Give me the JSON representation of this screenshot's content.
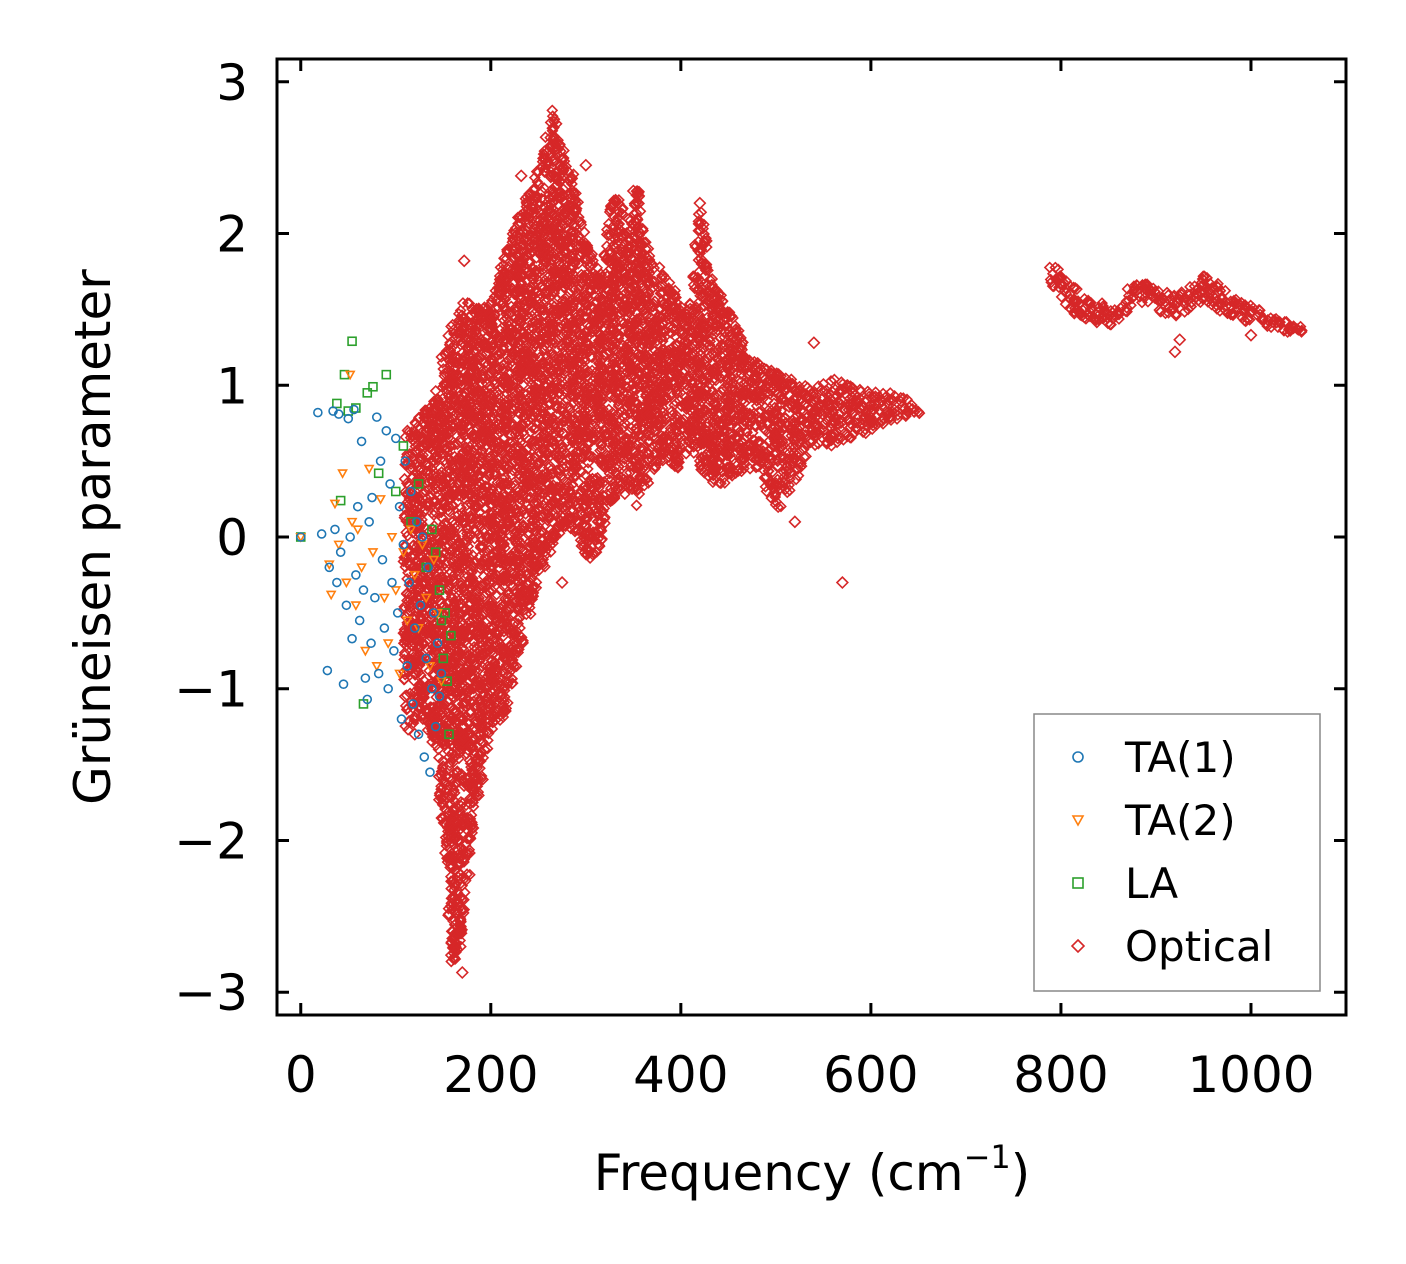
{
  "chart_data": {
    "type": "scatter",
    "title": "",
    "xlabel": "Frequency (cm",
    "xlabel_sup": "−1",
    "xlabel_end": ")",
    "ylabel": "Grüneisen parameter",
    "xlim": [
      -25,
      1100
    ],
    "ylim": [
      -3.15,
      3.15
    ],
    "xticks": [
      0,
      200,
      400,
      600,
      800,
      1000
    ],
    "xtick_labels": [
      "0",
      "200",
      "400",
      "600",
      "800",
      "1000"
    ],
    "yticks": [
      -3,
      -2,
      -1,
      0,
      1,
      2,
      3
    ],
    "ytick_labels": [
      "−3",
      "−2",
      "−1",
      "0",
      "1",
      "2",
      "3"
    ],
    "legend_position": "lower-right",
    "grid": false,
    "series": [
      {
        "name": "TA(1)",
        "marker": "circle",
        "color": "#1f77b4",
        "points": [
          [
            0,
            0.0
          ],
          [
            18,
            0.82
          ],
          [
            22,
            0.02
          ],
          [
            28,
            -0.88
          ],
          [
            30,
            -0.2
          ],
          [
            34,
            0.83
          ],
          [
            36,
            0.05
          ],
          [
            38,
            -0.3
          ],
          [
            40,
            0.81
          ],
          [
            42,
            -0.1
          ],
          [
            45,
            -0.97
          ],
          [
            48,
            -0.45
          ],
          [
            50,
            0.78
          ],
          [
            52,
            0.0
          ],
          [
            54,
            -0.67
          ],
          [
            56,
            0.84
          ],
          [
            58,
            -0.25
          ],
          [
            60,
            0.2
          ],
          [
            62,
            -0.55
          ],
          [
            64,
            0.63
          ],
          [
            66,
            -0.35
          ],
          [
            68,
            -0.93
          ],
          [
            70,
            -1.07
          ],
          [
            72,
            0.1
          ],
          [
            74,
            -0.7
          ],
          [
            75,
            0.26
          ],
          [
            78,
            -0.4
          ],
          [
            80,
            0.79
          ],
          [
            82,
            -0.9
          ],
          [
            84,
            0.5
          ],
          [
            86,
            -0.15
          ],
          [
            88,
            -0.6
          ],
          [
            90,
            0.7
          ],
          [
            92,
            -1.0
          ],
          [
            94,
            0.35
          ],
          [
            96,
            -0.3
          ],
          [
            98,
            -0.75
          ],
          [
            100,
            0.65
          ],
          [
            102,
            -0.5
          ],
          [
            104,
            0.2
          ],
          [
            106,
            -1.2
          ],
          [
            108,
            -0.05
          ],
          [
            110,
            0.5
          ],
          [
            112,
            -0.85
          ],
          [
            114,
            -0.3
          ],
          [
            116,
            0.3
          ],
          [
            118,
            -1.1
          ],
          [
            120,
            -0.6
          ],
          [
            122,
            0.1
          ],
          [
            124,
            -1.3
          ],
          [
            126,
            -0.45
          ],
          [
            128,
            0.0
          ],
          [
            130,
            -1.45
          ],
          [
            132,
            -0.8
          ],
          [
            134,
            -0.2
          ],
          [
            136,
            -1.55
          ],
          [
            138,
            -1.0
          ],
          [
            140,
            -0.5
          ],
          [
            142,
            -1.25
          ],
          [
            144,
            -0.7
          ],
          [
            146,
            -1.05
          ],
          [
            148,
            -0.9
          ]
        ]
      },
      {
        "name": "TA(2)",
        "marker": "triangle-down",
        "color": "#ff7f0e",
        "points": [
          [
            0,
            0.0
          ],
          [
            30,
            -0.18
          ],
          [
            32,
            -0.38
          ],
          [
            36,
            0.22
          ],
          [
            40,
            -0.05
          ],
          [
            44,
            0.42
          ],
          [
            48,
            -0.3
          ],
          [
            52,
            1.07
          ],
          [
            54,
            0.1
          ],
          [
            58,
            -0.45
          ],
          [
            60,
            0.05
          ],
          [
            64,
            -0.2
          ],
          [
            68,
            -0.75
          ],
          [
            72,
            0.45
          ],
          [
            76,
            -0.1
          ],
          [
            80,
            -0.85
          ],
          [
            84,
            0.25
          ],
          [
            88,
            -0.4
          ],
          [
            92,
            -0.7
          ],
          [
            96,
            0.0
          ],
          [
            100,
            -0.35
          ],
          [
            104,
            -0.9
          ],
          [
            108,
            -0.1
          ],
          [
            112,
            -0.55
          ],
          [
            116,
            0.05
          ],
          [
            120,
            -0.25
          ],
          [
            124,
            -0.6
          ],
          [
            128,
            -0.05
          ],
          [
            132,
            -0.4
          ],
          [
            136,
            -0.85
          ],
          [
            140,
            -0.15
          ],
          [
            144,
            -0.5
          ],
          [
            148,
            -0.95
          ]
        ]
      },
      {
        "name": "LA",
        "marker": "square",
        "color": "#2ca02c",
        "points": [
          [
            0,
            0.0
          ],
          [
            38,
            0.88
          ],
          [
            42,
            0.24
          ],
          [
            46,
            1.07
          ],
          [
            50,
            0.83
          ],
          [
            54,
            1.29
          ],
          [
            58,
            0.85
          ],
          [
            66,
            -1.1
          ],
          [
            70,
            0.95
          ],
          [
            76,
            0.99
          ],
          [
            82,
            0.42
          ],
          [
            90,
            1.07
          ],
          [
            100,
            0.3
          ],
          [
            108,
            0.6
          ],
          [
            116,
            0.1
          ],
          [
            124,
            0.35
          ],
          [
            132,
            -0.2
          ],
          [
            138,
            0.05
          ],
          [
            142,
            -0.1
          ],
          [
            146,
            -0.35
          ],
          [
            148,
            -0.55
          ],
          [
            150,
            -0.8
          ],
          [
            152,
            -0.5
          ],
          [
            154,
            -0.95
          ],
          [
            156,
            -1.3
          ],
          [
            158,
            -0.65
          ]
        ]
      },
      {
        "name": "Optical",
        "marker": "diamond",
        "color": "#d62728",
        "envelope": [
          [
            110,
            0.7,
            -1.3
          ],
          [
            125,
            0.8,
            -1.2
          ],
          [
            140,
            0.9,
            -1.4
          ],
          [
            150,
            1.2,
            -1.9
          ],
          [
            160,
            1.4,
            -2.85
          ],
          [
            170,
            1.55,
            -2.7
          ],
          [
            180,
            1.55,
            -2.0
          ],
          [
            190,
            1.5,
            -1.6
          ],
          [
            200,
            1.55,
            -1.3
          ],
          [
            215,
            1.85,
            -1.2
          ],
          [
            230,
            2.15,
            -0.8
          ],
          [
            245,
            2.35,
            -0.45
          ],
          [
            255,
            2.55,
            -0.2
          ],
          [
            265,
            2.82,
            -0.05
          ],
          [
            275,
            2.55,
            0.05
          ],
          [
            285,
            2.4,
            0.05
          ],
          [
            300,
            1.95,
            -0.15
          ],
          [
            315,
            1.75,
            -0.1
          ],
          [
            330,
            2.3,
            0.25
          ],
          [
            345,
            2.1,
            0.3
          ],
          [
            355,
            2.3,
            0.2
          ],
          [
            365,
            1.9,
            0.35
          ],
          [
            380,
            1.75,
            0.5
          ],
          [
            395,
            1.6,
            0.45
          ],
          [
            410,
            1.55,
            0.6
          ],
          [
            420,
            2.15,
            0.45
          ],
          [
            435,
            1.7,
            0.35
          ],
          [
            450,
            1.5,
            0.35
          ],
          [
            465,
            1.3,
            0.45
          ],
          [
            480,
            1.15,
            0.45
          ],
          [
            500,
            1.1,
            0.15
          ],
          [
            520,
            1.05,
            0.35
          ],
          [
            540,
            1.0,
            0.6
          ],
          [
            560,
            1.05,
            0.6
          ],
          [
            580,
            1.0,
            0.65
          ],
          [
            600,
            0.98,
            0.7
          ],
          [
            620,
            0.95,
            0.75
          ],
          [
            640,
            0.9,
            0.8
          ],
          [
            652,
            0.82,
            0.82
          ],
          [
            790,
            1.8,
            1.65
          ],
          [
            800,
            1.75,
            1.55
          ],
          [
            815,
            1.65,
            1.45
          ],
          [
            830,
            1.55,
            1.42
          ],
          [
            845,
            1.55,
            1.38
          ],
          [
            860,
            1.5,
            1.42
          ],
          [
            875,
            1.68,
            1.52
          ],
          [
            890,
            1.68,
            1.55
          ],
          [
            905,
            1.62,
            1.48
          ],
          [
            920,
            1.6,
            1.45
          ],
          [
            935,
            1.65,
            1.5
          ],
          [
            950,
            1.72,
            1.55
          ],
          [
            965,
            1.68,
            1.5
          ],
          [
            980,
            1.6,
            1.45
          ],
          [
            995,
            1.55,
            1.42
          ],
          [
            1010,
            1.5,
            1.4
          ],
          [
            1025,
            1.45,
            1.37
          ],
          [
            1040,
            1.42,
            1.35
          ],
          [
            1055,
            1.38,
            1.35
          ]
        ],
        "outliers": [
          [
            172,
            1.82
          ],
          [
            178,
            1.15
          ],
          [
            190,
            1.3
          ],
          [
            192,
            1.5
          ],
          [
            205,
            1.02
          ],
          [
            210,
            1.72
          ],
          [
            225,
            2.02
          ],
          [
            232,
            2.38
          ],
          [
            300,
            2.45
          ],
          [
            420,
            2.2
          ],
          [
            540,
            1.28
          ],
          [
            350,
            2.28
          ],
          [
            520,
            0.1
          ],
          [
            605,
            0.95
          ],
          [
            570,
            -0.3
          ],
          [
            170,
            -2.87
          ],
          [
            275,
            -0.3
          ],
          [
            920,
            1.22
          ],
          [
            925,
            1.3
          ],
          [
            1000,
            1.33
          ],
          [
            175,
            -1.0
          ],
          [
            110,
            -1.05
          ],
          [
            120,
            -1.3
          ]
        ]
      }
    ]
  }
}
